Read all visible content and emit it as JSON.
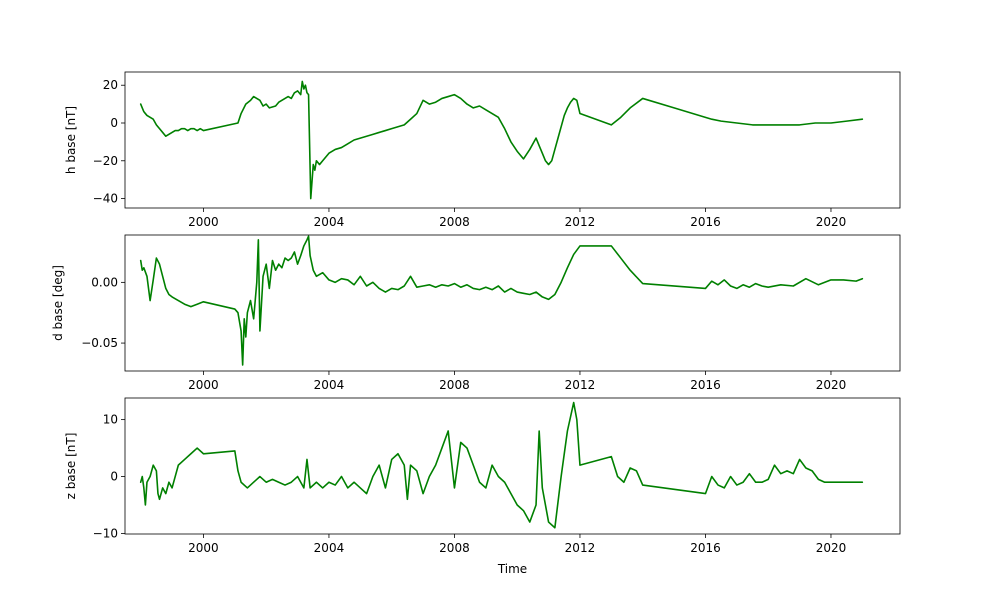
{
  "figure": {
    "background": "#ffffff",
    "line_color": "#008000"
  },
  "chart_data": [
    {
      "type": "line",
      "ylabel": "h base [nT]",
      "xlabel": "",
      "xlim": [
        1997.5,
        2022.2
      ],
      "ylim": [
        -45,
        27
      ],
      "x_ticks": [
        2000,
        2004,
        2008,
        2012,
        2016,
        2020
      ],
      "x_tick_labels": [
        "2000",
        "2004",
        "2008",
        "2012",
        "2016",
        "2020"
      ],
      "y_ticks": [
        -40,
        -20,
        0,
        20
      ],
      "y_tick_labels": [
        "−40",
        "−20",
        "0",
        "20"
      ],
      "grid": false,
      "series": [
        {
          "color": "#008000",
          "x": [
            1998.0,
            1998.05,
            1998.1,
            1998.15,
            1998.2,
            1998.3,
            1998.4,
            1998.5,
            1998.6,
            1998.7,
            1998.8,
            1998.9,
            1999.0,
            1999.1,
            1999.2,
            1999.3,
            1999.4,
            1999.5,
            1999.6,
            1999.7,
            1999.8,
            1999.9,
            2000.0,
            2001.1,
            2001.2,
            2001.35,
            2001.5,
            2001.6,
            2001.8,
            2001.9,
            2002.0,
            2002.1,
            2002.3,
            2002.4,
            2002.5,
            2002.6,
            2002.7,
            2002.8,
            2002.9,
            2003.0,
            2003.1,
            2003.15,
            2003.2,
            2003.25,
            2003.3,
            2003.35,
            2003.42,
            2003.5,
            2003.55,
            2003.6,
            2003.7,
            2003.8,
            2003.9,
            2004.0,
            2004.2,
            2004.4,
            2004.6,
            2004.8,
            2005.0,
            2005.2,
            2005.4,
            2005.6,
            2005.8,
            2006.0,
            2006.2,
            2006.4,
            2006.6,
            2006.8,
            2007.0,
            2007.2,
            2007.4,
            2007.6,
            2007.8,
            2008.0,
            2008.2,
            2008.4,
            2008.6,
            2008.8,
            2009.0,
            2009.2,
            2009.4,
            2009.6,
            2009.8,
            2010.0,
            2010.2,
            2010.4,
            2010.6,
            2010.7,
            2010.8,
            2010.9,
            2011.0,
            2011.1,
            2011.2,
            2011.3,
            2011.4,
            2011.5,
            2011.6,
            2011.7,
            2011.8,
            2011.9,
            2012.0,
            2013.0,
            2013.3,
            2013.6,
            2014.0,
            2015.0,
            2016.0,
            2016.2,
            2016.5,
            2017.0,
            2017.5,
            2018.0,
            2018.5,
            2019.0,
            2019.5,
            2020.0,
            2020.5,
            2021.0
          ],
          "y": [
            10,
            8,
            6,
            5,
            4,
            3,
            2,
            -1,
            -3,
            -5,
            -7,
            -6,
            -5,
            -4,
            -4,
            -3,
            -3,
            -4,
            -3,
            -3,
            -4,
            -3,
            -4,
            0,
            5,
            10,
            12,
            14,
            12,
            9,
            10,
            8,
            9,
            11,
            12,
            13,
            14,
            13,
            16,
            17,
            15,
            22,
            18,
            20,
            16,
            15,
            -40,
            -22,
            -25,
            -20,
            -22,
            -20,
            -18,
            -16,
            -14,
            -13,
            -11,
            -9,
            -8,
            -7,
            -6,
            -5,
            -4,
            -3,
            -2,
            -1,
            2,
            5,
            12,
            10,
            11,
            13,
            14,
            15,
            13,
            10,
            8,
            9,
            7,
            5,
            3,
            -3,
            -10,
            -15,
            -19,
            -14,
            -8,
            -12,
            -16,
            -20,
            -22,
            -20,
            -14,
            -8,
            -2,
            4,
            8,
            11,
            13,
            12,
            5,
            -1,
            3,
            8,
            13,
            8,
            3,
            2,
            1,
            0,
            -1,
            -1,
            -1,
            -1,
            0,
            0,
            1,
            2
          ]
        }
      ]
    },
    {
      "type": "line",
      "ylabel": "d base [deg]",
      "xlabel": "",
      "xlim": [
        1997.5,
        2022.2
      ],
      "ylim": [
        -0.073,
        0.039
      ],
      "x_ticks": [
        2000,
        2004,
        2008,
        2012,
        2016,
        2020
      ],
      "x_tick_labels": [
        "2000",
        "2004",
        "2008",
        "2012",
        "2016",
        "2020"
      ],
      "y_ticks": [
        -0.05,
        0.0
      ],
      "y_tick_labels": [
        "−0.05",
        "0.00"
      ],
      "grid": false,
      "series": [
        {
          "color": "#008000",
          "x": [
            1998.0,
            1998.05,
            1998.1,
            1998.2,
            1998.3,
            1998.4,
            1998.5,
            1998.6,
            1998.7,
            1998.8,
            1998.9,
            1999.0,
            1999.2,
            1999.4,
            1999.6,
            1999.8,
            2000.0,
            2001.0,
            2001.1,
            2001.2,
            2001.25,
            2001.3,
            2001.35,
            2001.4,
            2001.5,
            2001.6,
            2001.7,
            2001.75,
            2001.8,
            2001.9,
            2002.0,
            2002.1,
            2002.2,
            2002.3,
            2002.4,
            2002.5,
            2002.6,
            2002.7,
            2002.8,
            2002.9,
            2003.0,
            2003.1,
            2003.2,
            2003.3,
            2003.35,
            2003.4,
            2003.5,
            2003.6,
            2003.8,
            2004.0,
            2004.2,
            2004.4,
            2004.6,
            2004.8,
            2005.0,
            2005.2,
            2005.4,
            2005.6,
            2005.8,
            2006.0,
            2006.2,
            2006.4,
            2006.6,
            2006.8,
            2007.0,
            2007.2,
            2007.4,
            2007.6,
            2007.8,
            2008.0,
            2008.2,
            2008.4,
            2008.6,
            2008.8,
            2009.0,
            2009.2,
            2009.4,
            2009.6,
            2009.8,
            2010.0,
            2010.2,
            2010.4,
            2010.6,
            2010.8,
            2011.0,
            2011.2,
            2011.4,
            2011.6,
            2011.8,
            2012.0,
            2013.0,
            2013.3,
            2013.6,
            2014.0,
            2016.0,
            2016.2,
            2016.4,
            2016.6,
            2016.8,
            2017.0,
            2017.2,
            2017.4,
            2017.6,
            2017.8,
            2018.0,
            2018.4,
            2018.8,
            2019.2,
            2019.6,
            2020.0,
            2020.4,
            2020.8,
            2021.0
          ],
          "y": [
            0.018,
            0.01,
            0.012,
            0.005,
            -0.015,
            0.002,
            0.02,
            0.015,
            0.005,
            -0.005,
            -0.01,
            -0.012,
            -0.015,
            -0.018,
            -0.02,
            -0.018,
            -0.016,
            -0.022,
            -0.025,
            -0.04,
            -0.068,
            -0.03,
            -0.045,
            -0.025,
            -0.015,
            -0.03,
            0.0,
            0.035,
            -0.04,
            0.005,
            0.015,
            -0.005,
            0.018,
            0.01,
            0.015,
            0.012,
            0.02,
            0.018,
            0.02,
            0.025,
            0.015,
            0.022,
            0.03,
            0.035,
            0.038,
            0.022,
            0.01,
            0.005,
            0.008,
            0.002,
            0.0,
            0.003,
            0.002,
            -0.002,
            0.005,
            -0.003,
            0.0,
            -0.005,
            -0.008,
            -0.005,
            -0.006,
            -0.003,
            0.005,
            -0.004,
            -0.003,
            -0.002,
            -0.004,
            -0.002,
            -0.003,
            -0.001,
            -0.004,
            -0.002,
            -0.005,
            -0.006,
            -0.004,
            -0.006,
            -0.003,
            -0.008,
            -0.005,
            -0.008,
            -0.009,
            -0.01,
            -0.008,
            -0.012,
            -0.014,
            -0.01,
            0.0,
            0.012,
            0.023,
            0.03,
            0.03,
            0.02,
            0.01,
            -0.001,
            -0.005,
            0.001,
            -0.002,
            0.002,
            -0.003,
            -0.005,
            -0.002,
            -0.004,
            -0.001,
            -0.003,
            -0.004,
            -0.002,
            -0.003,
            0.003,
            -0.002,
            0.002,
            0.002,
            0.001,
            0.003
          ]
        }
      ]
    },
    {
      "type": "line",
      "ylabel": "z base [nT]",
      "xlabel": "Time",
      "xlim": [
        1997.5,
        2022.2
      ],
      "ylim": [
        -10.1,
        13.8
      ],
      "x_ticks": [
        2000,
        2004,
        2008,
        2012,
        2016,
        2020
      ],
      "x_tick_labels": [
        "2000",
        "2004",
        "2008",
        "2012",
        "2016",
        "2020"
      ],
      "y_ticks": [
        -10,
        0,
        10
      ],
      "y_tick_labels": [
        "−10",
        "0",
        "10"
      ],
      "grid": false,
      "series": [
        {
          "color": "#008000",
          "x": [
            1998.0,
            1998.05,
            1998.1,
            1998.15,
            1998.2,
            1998.3,
            1998.4,
            1998.5,
            1998.55,
            1998.6,
            1998.7,
            1998.8,
            1998.9,
            1999.0,
            1999.2,
            1999.4,
            1999.6,
            1999.8,
            2000.0,
            2001.0,
            2001.1,
            2001.2,
            2001.4,
            2001.6,
            2001.8,
            2002.0,
            2002.2,
            2002.4,
            2002.6,
            2002.8,
            2003.0,
            2003.2,
            2003.3,
            2003.4,
            2003.6,
            2003.8,
            2004.0,
            2004.2,
            2004.4,
            2004.6,
            2004.8,
            2005.0,
            2005.2,
            2005.4,
            2005.6,
            2005.8,
            2006.0,
            2006.2,
            2006.4,
            2006.5,
            2006.6,
            2006.8,
            2007.0,
            2007.2,
            2007.4,
            2007.6,
            2007.8,
            2008.0,
            2008.2,
            2008.4,
            2008.6,
            2008.8,
            2009.0,
            2009.2,
            2009.4,
            2009.6,
            2009.8,
            2010.0,
            2010.2,
            2010.4,
            2010.6,
            2010.7,
            2010.8,
            2011.0,
            2011.2,
            2011.4,
            2011.6,
            2011.8,
            2011.9,
            2012.0,
            2013.0,
            2013.2,
            2013.4,
            2013.6,
            2013.8,
            2014.0,
            2016.0,
            2016.2,
            2016.4,
            2016.6,
            2016.8,
            2017.0,
            2017.2,
            2017.4,
            2017.6,
            2017.8,
            2018.0,
            2018.2,
            2018.4,
            2018.6,
            2018.8,
            2019.0,
            2019.2,
            2019.4,
            2019.6,
            2019.8,
            2020.0,
            2020.4,
            2020.8,
            2021.0
          ],
          "y": [
            -1,
            0,
            -2,
            -5,
            -1,
            0,
            2,
            1,
            -3,
            -4,
            -2,
            -3,
            -1,
            -2,
            2,
            3,
            4,
            5,
            4,
            4.5,
            1,
            -1,
            -2,
            -1,
            0,
            -1,
            -0.5,
            -1,
            -1.5,
            -1,
            0,
            -2,
            3,
            -2,
            -1,
            -2,
            -1,
            -1.5,
            0,
            -2,
            -1,
            -2,
            -3,
            0,
            2,
            -2,
            3,
            4,
            2,
            -4,
            2,
            1,
            -3,
            0,
            2,
            5,
            8,
            -2,
            6,
            5,
            2,
            -1,
            -2,
            2,
            0,
            -1,
            -3,
            -5,
            -6,
            -8,
            -5,
            8,
            -2,
            -8,
            -9,
            0,
            8,
            13,
            10,
            2,
            3.5,
            0,
            -1,
            1.5,
            1,
            -1.5,
            -3,
            0,
            -1.5,
            -2,
            0,
            -1.5,
            -1,
            0.5,
            -1,
            -1,
            -0.5,
            2,
            0.5,
            1,
            0.5,
            3,
            1.5,
            1,
            -0.5,
            -1,
            -1,
            -1,
            -1,
            -1
          ]
        }
      ]
    }
  ]
}
